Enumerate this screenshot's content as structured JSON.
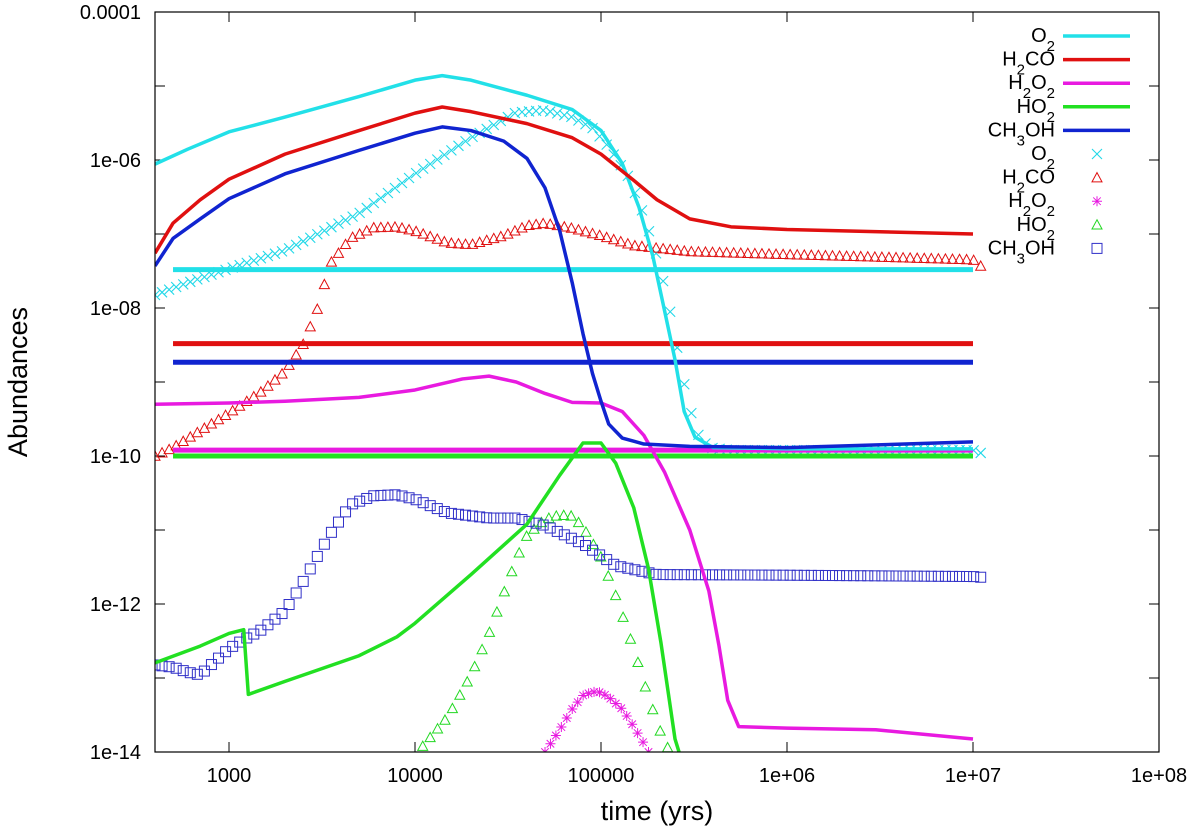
{
  "chart_data": {
    "type": "line",
    "xlabel": "time (yrs)",
    "ylabel": "Abundances",
    "xscale": "log",
    "yscale": "log",
    "xlim": [
      400,
      100000000
    ],
    "ylim": [
      1e-14,
      0.0001
    ],
    "xticks": [
      {
        "value": 1000,
        "label": "1000"
      },
      {
        "value": 10000,
        "label": "10000"
      },
      {
        "value": 100000,
        "label": "100000"
      },
      {
        "value": 1000000,
        "label": "1e+06"
      },
      {
        "value": 10000000,
        "label": "1e+07"
      },
      {
        "value": 100000000,
        "label": "1e+08"
      }
    ],
    "yticks": [
      {
        "value": 1e-14,
        "label": "1e-14"
      },
      {
        "value": 1e-12,
        "label": "1e-12"
      },
      {
        "value": 1e-10,
        "label": "1e-10"
      },
      {
        "value": 1e-08,
        "label": "1e-08"
      },
      {
        "value": 1e-06,
        "label": "1e-06"
      },
      {
        "value": 0.0001,
        "label": "0.0001"
      }
    ],
    "grid": false,
    "legend_position": "top-right",
    "lines": [
      {
        "name": "O2",
        "label_base": "O",
        "label_sub": "2",
        "label_tail": "",
        "color": "#22e0e8",
        "points": [
          [
            400,
            8.8e-07
          ],
          [
            600,
            1.4e-06
          ],
          [
            1000,
            2.4e-06
          ],
          [
            2000,
            3.8e-06
          ],
          [
            5000,
            7.2e-06
          ],
          [
            10000,
            1.2e-05
          ],
          [
            14000,
            1.38e-05
          ],
          [
            20000,
            1.2e-05
          ],
          [
            40000,
            7.5e-06
          ],
          [
            70000,
            4.8e-06
          ],
          [
            100000,
            2.5e-06
          ],
          [
            130000,
            9e-07
          ],
          [
            160000,
            2.3e-07
          ],
          [
            190000,
            5e-08
          ],
          [
            220000,
            9e-09
          ],
          [
            250000,
            2e-09
          ],
          [
            280000,
            4e-10
          ],
          [
            320000,
            1.8e-10
          ],
          [
            400000,
            1.3e-10
          ],
          [
            1000000,
            1.25e-10
          ],
          [
            10000000,
            1.25e-10
          ]
        ]
      },
      {
        "name": "H2CO",
        "label_base": "H",
        "label_sub": "2",
        "label_tail": "CO",
        "color": "#e01010",
        "points": [
          [
            400,
            5.5e-08
          ],
          [
            500,
            1.4e-07
          ],
          [
            700,
            2.9e-07
          ],
          [
            1000,
            5.5e-07
          ],
          [
            2000,
            1.2e-06
          ],
          [
            5000,
            2.5e-06
          ],
          [
            10000,
            4.3e-06
          ],
          [
            14000,
            5.2e-06
          ],
          [
            20000,
            4.5e-06
          ],
          [
            40000,
            3.1e-06
          ],
          [
            70000,
            2e-06
          ],
          [
            100000,
            1.2e-06
          ],
          [
            150000,
            5.3e-07
          ],
          [
            200000,
            2.9e-07
          ],
          [
            300000,
            1.6e-07
          ],
          [
            500000,
            1.25e-07
          ],
          [
            1000000,
            1.15e-07
          ],
          [
            10000000,
            1e-07
          ]
        ]
      },
      {
        "name": "H2O2",
        "label_base": "H",
        "label_sub": "2",
        "label_tail": "O",
        "label_sub2": "2",
        "color": "#e81ae0",
        "points": [
          [
            400,
            5e-10
          ],
          [
            1000,
            5.2e-10
          ],
          [
            2000,
            5.5e-10
          ],
          [
            5000,
            6.2e-10
          ],
          [
            10000,
            7.8e-10
          ],
          [
            18000,
            1.1e-09
          ],
          [
            25000,
            1.2e-09
          ],
          [
            35000,
            1e-09
          ],
          [
            50000,
            7e-10
          ],
          [
            70000,
            5.3e-10
          ],
          [
            100000,
            5.2e-10
          ],
          [
            130000,
            4e-10
          ],
          [
            170000,
            1.9e-10
          ],
          [
            220000,
            6e-11
          ],
          [
            300000,
            1e-11
          ],
          [
            380000,
            1.5e-12
          ],
          [
            430000,
            2.8e-13
          ],
          [
            480000,
            5e-14
          ],
          [
            550000,
            2.2e-14
          ],
          [
            1000000,
            2.1e-14
          ],
          [
            3000000,
            2e-14
          ],
          [
            10000000,
            1.5e-14
          ]
        ]
      },
      {
        "name": "HO2",
        "label_base": "HO",
        "label_sub": "2",
        "label_tail": "",
        "color": "#22e022",
        "points": [
          [
            400,
            1.6e-13
          ],
          [
            700,
            2.7e-13
          ],
          [
            1000,
            4e-13
          ],
          [
            1200,
            4.5e-13
          ],
          [
            1270,
            6e-14
          ],
          [
            2000,
            9e-14
          ],
          [
            5000,
            2e-13
          ],
          [
            8000,
            3.6e-13
          ],
          [
            10000,
            5.5e-13
          ],
          [
            20000,
            2.5e-12
          ],
          [
            40000,
            1.2e-11
          ],
          [
            60000,
            5.5e-11
          ],
          [
            80000,
            1.5e-10
          ],
          [
            100000,
            1.5e-10
          ],
          [
            120000,
            8e-11
          ],
          [
            150000,
            2e-11
          ],
          [
            180000,
            3e-12
          ],
          [
            210000,
            3e-13
          ],
          [
            250000,
            1.5e-14
          ],
          [
            270000,
            8e-15
          ]
        ]
      },
      {
        "name": "CH3OH",
        "label_base": "CH",
        "label_sub": "3",
        "label_tail": "OH",
        "color": "#1024d0",
        "points": [
          [
            400,
            3.7e-08
          ],
          [
            500,
            8.7e-08
          ],
          [
            700,
            1.6e-07
          ],
          [
            1000,
            3e-07
          ],
          [
            2000,
            6.5e-07
          ],
          [
            5000,
            1.35e-06
          ],
          [
            10000,
            2.3e-06
          ],
          [
            14000,
            2.8e-06
          ],
          [
            20000,
            2.5e-06
          ],
          [
            30000,
            1.8e-06
          ],
          [
            40000,
            1.05e-06
          ],
          [
            50000,
            4.2e-07
          ],
          [
            60000,
            1.1e-07
          ],
          [
            70000,
            2.2e-08
          ],
          [
            80000,
            4.5e-09
          ],
          [
            90000,
            1.3e-09
          ],
          [
            100000,
            5.5e-10
          ],
          [
            110000,
            2.7e-10
          ],
          [
            130000,
            1.75e-10
          ],
          [
            170000,
            1.45e-10
          ],
          [
            300000,
            1.35e-10
          ],
          [
            1000000,
            1.3e-10
          ],
          [
            10000000,
            1.55e-10
          ]
        ]
      }
    ],
    "flat_lines": [
      {
        "series": "O2",
        "color": "#22e0e8",
        "value": 3.3e-08,
        "x_start": 500,
        "x_end": 10000000
      },
      {
        "series": "H2CO",
        "color": "#e01010",
        "value": 3.3e-09,
        "x_start": 500,
        "x_end": 10000000
      },
      {
        "series": "CH3OH",
        "color": "#1024d0",
        "value": 1.85e-09,
        "x_start": 500,
        "x_end": 10000000
      },
      {
        "series": "H2O2",
        "color": "#e81ae0",
        "value": 1.2e-10,
        "x_start": 500,
        "x_end": 10000000
      },
      {
        "series": "HO2",
        "color": "#22e022",
        "value": 1e-10,
        "x_start": 500,
        "x_end": 10000000
      }
    ],
    "markers": [
      {
        "name": "O2",
        "label_base": "O",
        "label_sub": "2",
        "label_tail": "",
        "color": "#22d8e8",
        "marker": "x",
        "x_start": 400,
        "x_end": 11000000,
        "n": 118,
        "curve": [
          [
            400,
            1.5e-08
          ],
          [
            600,
            2.2e-08
          ],
          [
            1000,
            3.4e-08
          ],
          [
            2000,
            6e-08
          ],
          [
            5000,
            1.9e-07
          ],
          [
            10000,
            6.5e-07
          ],
          [
            20000,
            2e-06
          ],
          [
            35000,
            4.4e-06
          ],
          [
            50000,
            4.7e-06
          ],
          [
            70000,
            3.8e-06
          ],
          [
            90000,
            2.7e-06
          ],
          [
            110000,
            1.5e-06
          ],
          [
            140000,
            6e-07
          ],
          [
            170000,
            1.8e-07
          ],
          [
            200000,
            5e-08
          ],
          [
            230000,
            1.2e-08
          ],
          [
            260000,
            2.5e-09
          ],
          [
            290000,
            6e-10
          ],
          [
            330000,
            2e-10
          ],
          [
            380000,
            1.3e-10
          ],
          [
            500000,
            1.2e-10
          ],
          [
            10000000,
            1.2e-10
          ],
          [
            11000000,
            1.1e-10
          ]
        ]
      },
      {
        "name": "H2CO",
        "label_base": "H",
        "label_sub": "2",
        "label_tail": "CO",
        "color": "#e01010",
        "marker": "tri",
        "x_start": 400,
        "x_end": 11000000,
        "n": 118,
        "curve": [
          [
            400,
            1e-10
          ],
          [
            500,
            1.3e-10
          ],
          [
            700,
            2.2e-10
          ],
          [
            1000,
            3.8e-10
          ],
          [
            1500,
            7.5e-10
          ],
          [
            2000,
            1.4e-09
          ],
          [
            2500,
            3.2e-09
          ],
          [
            3000,
            1e-08
          ],
          [
            3500,
            4e-08
          ],
          [
            4500,
            8.8e-08
          ],
          [
            6000,
            1.22e-07
          ],
          [
            8000,
            1.25e-07
          ],
          [
            10000,
            1.1e-07
          ],
          [
            15000,
            7.6e-08
          ],
          [
            20000,
            7.2e-08
          ],
          [
            30000,
            9.5e-08
          ],
          [
            40000,
            1.3e-07
          ],
          [
            50000,
            1.4e-07
          ],
          [
            70000,
            1.2e-07
          ],
          [
            100000,
            9.5e-08
          ],
          [
            150000,
            7e-08
          ],
          [
            300000,
            5.8e-08
          ],
          [
            1000000,
            5.3e-08
          ],
          [
            10000000,
            4.5e-08
          ],
          [
            11000000,
            3.7e-08
          ]
        ]
      },
      {
        "name": "H2O2",
        "label_base": "H",
        "label_sub": "2",
        "label_tail": "O",
        "label_sub2": "2",
        "color": "#e81ae0",
        "marker": "star",
        "x_start": 50000,
        "x_end": 180000,
        "n": 20,
        "curve": [
          [
            50000,
            1e-14
          ],
          [
            60000,
            2e-14
          ],
          [
            70000,
            3.8e-14
          ],
          [
            80000,
            5.8e-14
          ],
          [
            90000,
            6.5e-14
          ],
          [
            100000,
            6.4e-14
          ],
          [
            110000,
            5.5e-14
          ],
          [
            130000,
            3.8e-14
          ],
          [
            150000,
            2.2e-14
          ],
          [
            170000,
            1.3e-14
          ],
          [
            180000,
            1e-14
          ]
        ]
      },
      {
        "name": "HO2",
        "label_base": "HO",
        "label_sub": "2",
        "label_tail": "",
        "color": "#22d822",
        "marker": "tri",
        "x_start": 11000,
        "x_end": 250000,
        "n": 35,
        "curve": [
          [
            11000,
            1.2e-14
          ],
          [
            15000,
            3e-14
          ],
          [
            20000,
            1.1e-13
          ],
          [
            25000,
            4e-13
          ],
          [
            30000,
            1.4e-12
          ],
          [
            35000,
            4e-12
          ],
          [
            40000,
            8.5e-12
          ],
          [
            50000,
            1.4e-11
          ],
          [
            60000,
            1.6e-11
          ],
          [
            70000,
            1.55e-11
          ],
          [
            80000,
            1.1e-11
          ],
          [
            100000,
            4.3e-12
          ],
          [
            120000,
            1.3e-12
          ],
          [
            150000,
            2.5e-13
          ],
          [
            180000,
            5.5e-14
          ],
          [
            210000,
            1.8e-14
          ],
          [
            250000,
            7e-15
          ]
        ]
      },
      {
        "name": "CH3OH",
        "label_base": "CH",
        "label_sub": "3",
        "label_tail": "OH",
        "color": "#3030c8",
        "marker": "square",
        "x_start": 400,
        "x_end": 11000000,
        "n": 118,
        "curve": [
          [
            400,
            1.5e-13
          ],
          [
            500,
            1.4e-13
          ],
          [
            600,
            1.2e-13
          ],
          [
            700,
            1.1e-13
          ],
          [
            800,
            1.5e-13
          ],
          [
            1000,
            2.5e-13
          ],
          [
            1200,
            3.3e-13
          ],
          [
            1500,
            4.5e-13
          ],
          [
            2000,
            8e-13
          ],
          [
            2500,
            2e-12
          ],
          [
            3000,
            4.5e-12
          ],
          [
            3500,
            8.8e-12
          ],
          [
            4500,
            2.2e-11
          ],
          [
            6000,
            2.9e-11
          ],
          [
            8000,
            3e-11
          ],
          [
            10000,
            2.6e-11
          ],
          [
            15000,
            1.7e-11
          ],
          [
            25000,
            1.45e-11
          ],
          [
            35000,
            1.45e-11
          ],
          [
            50000,
            1.15e-11
          ],
          [
            80000,
            6.5e-12
          ],
          [
            120000,
            3.3e-12
          ],
          [
            200000,
            2.5e-12
          ],
          [
            1000000,
            2.45e-12
          ],
          [
            10000000,
            2.35e-12
          ],
          [
            11000000,
            2.3e-12
          ]
        ]
      }
    ]
  }
}
